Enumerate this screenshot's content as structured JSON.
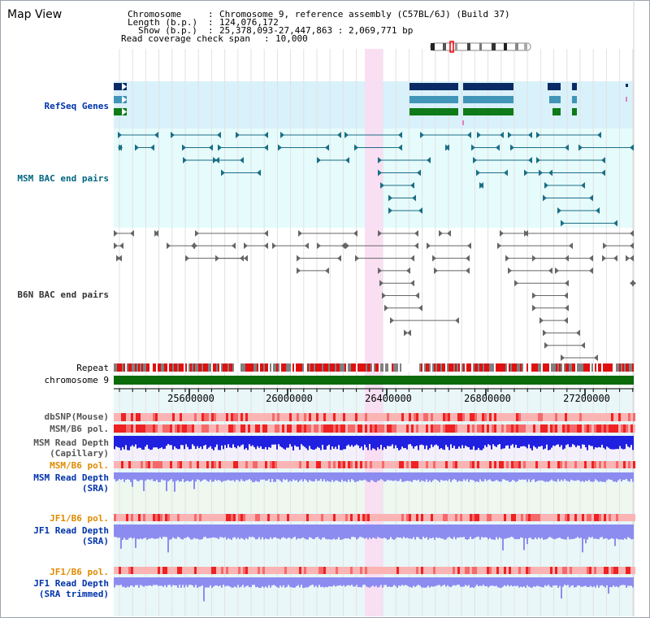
{
  "window": {
    "title": "Map View"
  },
  "header": {
    "chromosome_key": "Chromosome",
    "chromosome_value": "Chromosome 9, reference assembly (C57BL/6J) (Build 37)",
    "length_key": "Length (b.p.)",
    "length_value": "124,076,172",
    "show_key": "Show (b.p.)",
    "show_value": "25,378,093-27,447,863 : 2,069,771 bp",
    "coverage_key": "Read coverage check span",
    "coverage_value": "10,000"
  },
  "tracks": {
    "refseq": "RefSeq Genes",
    "msm_bac": "MSM BAC end pairs",
    "b6n_bac": "B6N BAC end pairs",
    "repeat": "Repeat",
    "chromosome": "chromosome 9",
    "dbsnp": "dbSNP(Mouse)",
    "msm_pol": "MSM/B6 pol.",
    "msm_depth_cap_1": "MSM Read Depth",
    "msm_depth_cap_2": "(Capillary)",
    "msm_pol2": "MSM/B6 pol.",
    "msm_depth_sra_1": "MSM Read Depth",
    "msm_depth_sra_2": "(SRA)",
    "jf1_pol": "JF1/B6 pol.",
    "jf1_depth_1": "JF1 Read Depth",
    "jf1_depth_2": "(SRA)",
    "jf1_pol2": "JF1/B6 pol.",
    "jf1_trim_1": "JF1 Read Depth",
    "jf1_trim_2": "(SRA trimmed)"
  },
  "axis": {
    "ticks": [
      "25600000",
      "26000000",
      "26400000",
      "26800000",
      "27200000"
    ]
  },
  "colors": {
    "refseq_bg": "#d9f1fa",
    "msm_bg": "#e6fbfb",
    "gene_navy": "#0a2a66",
    "gene_teal": "#4095b8",
    "gene_green": "#0e7a18",
    "bac_teal": "#1a6e86",
    "bac_gray": "#666666",
    "highlight": "#f9dcf2",
    "chrom_green": "#0b6b0b",
    "depth_blue": "#2020e0",
    "depth_light": "#8c8cf0"
  }
}
